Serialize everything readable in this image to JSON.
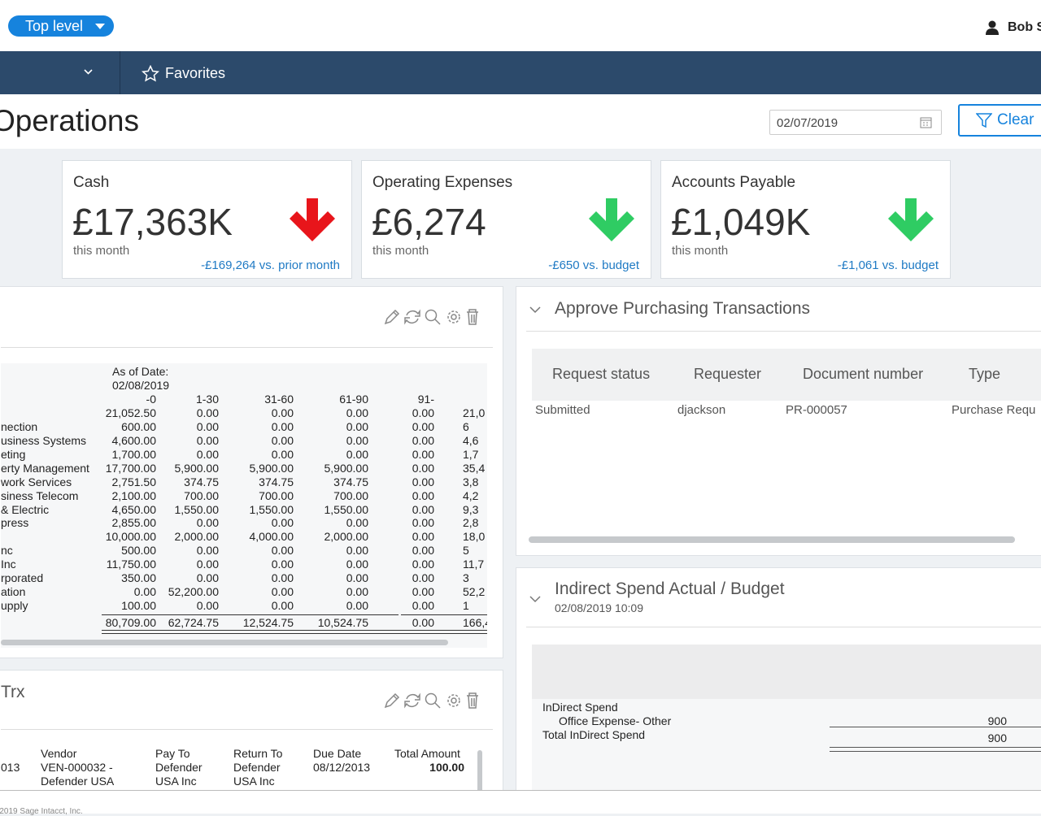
{
  "header": {
    "scope_button": "Top level",
    "user": "Bob S"
  },
  "nav": {
    "favorites": "Favorites"
  },
  "page": {
    "title": "Operations",
    "date": "02/07/2019",
    "clear": "Clear"
  },
  "cards": [
    {
      "title": "Cash",
      "value": "£17,363K",
      "period": "this month",
      "comparison": "-£169,264 vs. prior month",
      "arrow_color": "#e8151b"
    },
    {
      "title": "Operating Expenses",
      "value": "£6,274",
      "period": "this month",
      "comparison": "-£650 vs. budget",
      "arrow_color": "#2fcc63"
    },
    {
      "title": "Accounts Payable",
      "value": "£1,049K",
      "period": "this month",
      "comparison": "-£1,061 vs. budget",
      "arrow_color": "#2fcc63"
    }
  ],
  "aging": {
    "as_of_label": "As of Date:",
    "as_of_date": "02/08/2019",
    "columns": [
      "-0",
      "1-30",
      "31-60",
      "61-90",
      "91-"
    ],
    "rows": [
      {
        "name": null,
        "values": [
          "21,052.50",
          "0.00",
          "0.00",
          "0.00",
          "0.00"
        ],
        "total": "21,0"
      },
      {
        "name": "nection",
        "values": [
          "600.00",
          "0.00",
          "0.00",
          "0.00",
          "0.00"
        ],
        "total": "6"
      },
      {
        "name": "usiness Systems",
        "values": [
          "4,600.00",
          "0.00",
          "0.00",
          "0.00",
          "0.00"
        ],
        "total": "4,6"
      },
      {
        "name": "eting",
        "values": [
          "1,700.00",
          "0.00",
          "0.00",
          "0.00",
          "0.00"
        ],
        "total": "1,7"
      },
      {
        "name": "erty Management",
        "values": [
          "17,700.00",
          "5,900.00",
          "5,900.00",
          "5,900.00",
          "0.00"
        ],
        "total": "35,4"
      },
      {
        "name": "work Services",
        "values": [
          "2,751.50",
          "374.75",
          "374.75",
          "374.75",
          "0.00"
        ],
        "total": "3,8"
      },
      {
        "name": "siness Telecom",
        "values": [
          "2,100.00",
          "700.00",
          "700.00",
          "700.00",
          "0.00"
        ],
        "total": "4,2"
      },
      {
        "name": "& Electric",
        "values": [
          "4,650.00",
          "1,550.00",
          "1,550.00",
          "1,550.00",
          "0.00"
        ],
        "total": "9,3"
      },
      {
        "name": "press",
        "values": [
          "2,855.00",
          "0.00",
          "0.00",
          "0.00",
          "0.00"
        ],
        "total": "2,8"
      },
      {
        "name": null,
        "values": [
          "10,000.00",
          "2,000.00",
          "4,000.00",
          "2,000.00",
          "0.00"
        ],
        "total": "18,0"
      },
      {
        "name": "nc",
        "values": [
          "500.00",
          "0.00",
          "0.00",
          "0.00",
          "0.00"
        ],
        "total": "5"
      },
      {
        "name": "Inc",
        "values": [
          "11,750.00",
          "0.00",
          "0.00",
          "0.00",
          "0.00"
        ],
        "total": "11,7"
      },
      {
        "name": "rporated",
        "values": [
          "350.00",
          "0.00",
          "0.00",
          "0.00",
          "0.00"
        ],
        "total": "3"
      },
      {
        "name": "ation",
        "values": [
          "0.00",
          "52,200.00",
          "0.00",
          "0.00",
          "0.00"
        ],
        "total": "52,2"
      },
      {
        "name": "upply",
        "values": [
          "100.00",
          "0.00",
          "0.00",
          "0.00",
          "0.00"
        ],
        "total": "1"
      }
    ],
    "totals": {
      "values": [
        "80,709.00",
        "62,724.75",
        "12,524.75",
        "10,524.75",
        "0.00"
      ],
      "total": "166,4"
    }
  },
  "trx": {
    "title": "Trx",
    "columns": [
      "Vendor",
      "Pay To",
      "Return To",
      "Due Date",
      "Total Amount"
    ],
    "row": {
      "id": "013",
      "cells": [
        "VEN-000032 - Defender USA",
        "Defender USA Inc",
        "Defender USA Inc",
        "08/12/2013",
        "100.00"
      ]
    }
  },
  "approve": {
    "title": "Approve Purchasing Transactions",
    "columns": [
      "Request status",
      "Requester",
      "Document number",
      "Type"
    ],
    "row": [
      "Submitted",
      "djackson",
      "PR-000057",
      "Purchase Requ"
    ]
  },
  "indirect": {
    "title": "Indirect Spend Actual / Budget",
    "timestamp": "02/08/2019 10:09",
    "group": "InDirect Spend",
    "line_label": "Office Expense- Other",
    "line_value": "900",
    "total_label": "Total InDirect Spend",
    "total_value": "900"
  },
  "footer": {
    "copyright": "©2019 Sage Intacct, Inc."
  }
}
